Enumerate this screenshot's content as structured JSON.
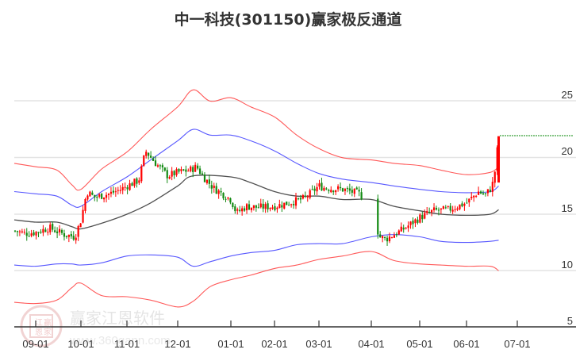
{
  "title": "中一科技(301150)赢家极反通道",
  "watermark": {
    "name": "赢家江恩软件",
    "url": "www.360gann.com",
    "seal_chars": [
      "江",
      "赢",
      "恩",
      "家"
    ]
  },
  "colors": {
    "outer_band": "#ff3b3b",
    "inner_band": "#3a3aff",
    "middle_line": "#333333",
    "up_candle": "#ff0000",
    "down_candle": "#138a13",
    "last_price_line": "#0a8a0a",
    "grid": "#e3e3e3"
  },
  "chart_data": {
    "type": "candlestick",
    "title": "中一科技(301150)赢家极反通道",
    "xlabel": "",
    "ylabel": "",
    "ylim": [
      5,
      27
    ],
    "yticks": [
      25,
      20,
      15,
      10,
      5
    ],
    "xticks": [
      "09-01",
      "10-01",
      "11-01",
      "12-01",
      "01-01",
      "02-01",
      "03-01",
      "04-01",
      "05-01",
      "06-01",
      "07-01"
    ],
    "grid": true,
    "legend": null,
    "last_close": 21.9,
    "series": [
      {
        "name": "upper_outer_band",
        "color": "red",
        "points": [
          [
            "08-15",
            19.5
          ],
          [
            "09-01",
            19.2
          ],
          [
            "09-15",
            18.9
          ],
          [
            "09-25",
            17.6
          ],
          [
            "10-01",
            17.2
          ],
          [
            "10-15",
            19.0
          ],
          [
            "11-01",
            20.5
          ],
          [
            "11-15",
            22.5
          ],
          [
            "12-01",
            24.5
          ],
          [
            "12-10",
            26.0
          ],
          [
            "12-20",
            25.0
          ],
          [
            "01-01",
            25.3
          ],
          [
            "01-15",
            24.5
          ],
          [
            "02-01",
            23.6
          ],
          [
            "02-15",
            22.0
          ],
          [
            "03-01",
            20.8
          ],
          [
            "03-15",
            20.0
          ],
          [
            "04-01",
            19.8
          ],
          [
            "04-15",
            19.5
          ],
          [
            "05-01",
            19.3
          ],
          [
            "05-15",
            18.9
          ],
          [
            "06-01",
            18.5
          ],
          [
            "06-15",
            18.7
          ],
          [
            "06-20",
            19.2
          ]
        ]
      },
      {
        "name": "upper_inner_band",
        "color": "blue",
        "points": [
          [
            "08-15",
            17.0
          ],
          [
            "09-01",
            16.8
          ],
          [
            "09-15",
            16.6
          ],
          [
            "09-25",
            15.8
          ],
          [
            "10-01",
            15.7
          ],
          [
            "10-15",
            17.0
          ],
          [
            "11-01",
            18.3
          ],
          [
            "11-15",
            19.8
          ],
          [
            "12-01",
            21.5
          ],
          [
            "12-10",
            22.5
          ],
          [
            "12-20",
            22.0
          ],
          [
            "01-01",
            22.0
          ],
          [
            "01-15",
            21.5
          ],
          [
            "02-01",
            20.6
          ],
          [
            "02-15",
            19.5
          ],
          [
            "03-01",
            18.6
          ],
          [
            "03-15",
            18.1
          ],
          [
            "04-01",
            17.8
          ],
          [
            "04-15",
            17.5
          ],
          [
            "05-01",
            17.2
          ],
          [
            "05-15",
            17.0
          ],
          [
            "06-01",
            16.9
          ],
          [
            "06-15",
            17.0
          ],
          [
            "06-20",
            17.5
          ]
        ]
      },
      {
        "name": "middle_line",
        "color": "black",
        "points": [
          [
            "08-15",
            14.5
          ],
          [
            "09-01",
            14.3
          ],
          [
            "09-15",
            14.3
          ],
          [
            "09-25",
            13.9
          ],
          [
            "10-01",
            13.7
          ],
          [
            "10-15",
            14.2
          ],
          [
            "11-01",
            15.0
          ],
          [
            "11-15",
            16.0
          ],
          [
            "12-01",
            17.5
          ],
          [
            "12-10",
            18.4
          ],
          [
            "01-01",
            18.3
          ],
          [
            "01-15",
            17.8
          ],
          [
            "02-01",
            17.0
          ],
          [
            "02-15",
            16.6
          ],
          [
            "03-01",
            16.6
          ],
          [
            "03-15",
            16.3
          ],
          [
            "04-01",
            16.3
          ],
          [
            "04-15",
            15.7
          ],
          [
            "05-01",
            15.3
          ],
          [
            "05-15",
            15.0
          ],
          [
            "06-01",
            14.9
          ],
          [
            "06-15",
            15.0
          ],
          [
            "06-20",
            15.4
          ]
        ]
      },
      {
        "name": "lower_inner_band",
        "color": "blue",
        "points": [
          [
            "08-15",
            10.5
          ],
          [
            "09-01",
            10.4
          ],
          [
            "09-15",
            10.6
          ],
          [
            "09-25",
            10.6
          ],
          [
            "10-01",
            10.5
          ],
          [
            "10-15",
            10.7
          ],
          [
            "11-01",
            11.3
          ],
          [
            "11-15",
            11.4
          ],
          [
            "12-01",
            11.2
          ],
          [
            "12-10",
            10.4
          ],
          [
            "12-20",
            10.8
          ],
          [
            "01-01",
            11.3
          ],
          [
            "01-15",
            11.6
          ],
          [
            "02-01",
            11.8
          ],
          [
            "02-15",
            12.3
          ],
          [
            "03-01",
            12.4
          ],
          [
            "03-15",
            12.4
          ],
          [
            "04-01",
            13.0
          ],
          [
            "04-15",
            13.2
          ],
          [
            "05-01",
            13.0
          ],
          [
            "05-15",
            12.6
          ],
          [
            "06-01",
            12.5
          ],
          [
            "06-15",
            12.6
          ],
          [
            "06-20",
            12.7
          ]
        ]
      },
      {
        "name": "lower_outer_band",
        "color": "red",
        "points": [
          [
            "08-15",
            7.2
          ],
          [
            "09-01",
            7.1
          ],
          [
            "09-15",
            7.4
          ],
          [
            "09-25",
            8.5
          ],
          [
            "10-01",
            8.9
          ],
          [
            "10-15",
            7.8
          ],
          [
            "11-01",
            7.7
          ],
          [
            "11-15",
            7.4
          ],
          [
            "12-01",
            6.8
          ],
          [
            "12-10",
            7.3
          ],
          [
            "12-20",
            8.6
          ],
          [
            "01-01",
            9.2
          ],
          [
            "01-15",
            9.6
          ],
          [
            "02-01",
            10.2
          ],
          [
            "02-15",
            10.5
          ],
          [
            "03-01",
            11.0
          ],
          [
            "03-15",
            11.3
          ],
          [
            "04-01",
            11.7
          ],
          [
            "04-15",
            10.9
          ],
          [
            "05-01",
            10.6
          ],
          [
            "05-15",
            10.5
          ],
          [
            "06-01",
            10.4
          ],
          [
            "06-15",
            10.4
          ],
          [
            "06-20",
            10.0
          ]
        ]
      }
    ],
    "ohlc_summary": {
      "start_price": 13.5,
      "oct_spike_high": 20.4,
      "nov_high": 21.6,
      "feb_low": 15.0,
      "mar_high": 17.8,
      "apr_gap_low": 12.0,
      "jun_end_close": 21.9
    }
  }
}
